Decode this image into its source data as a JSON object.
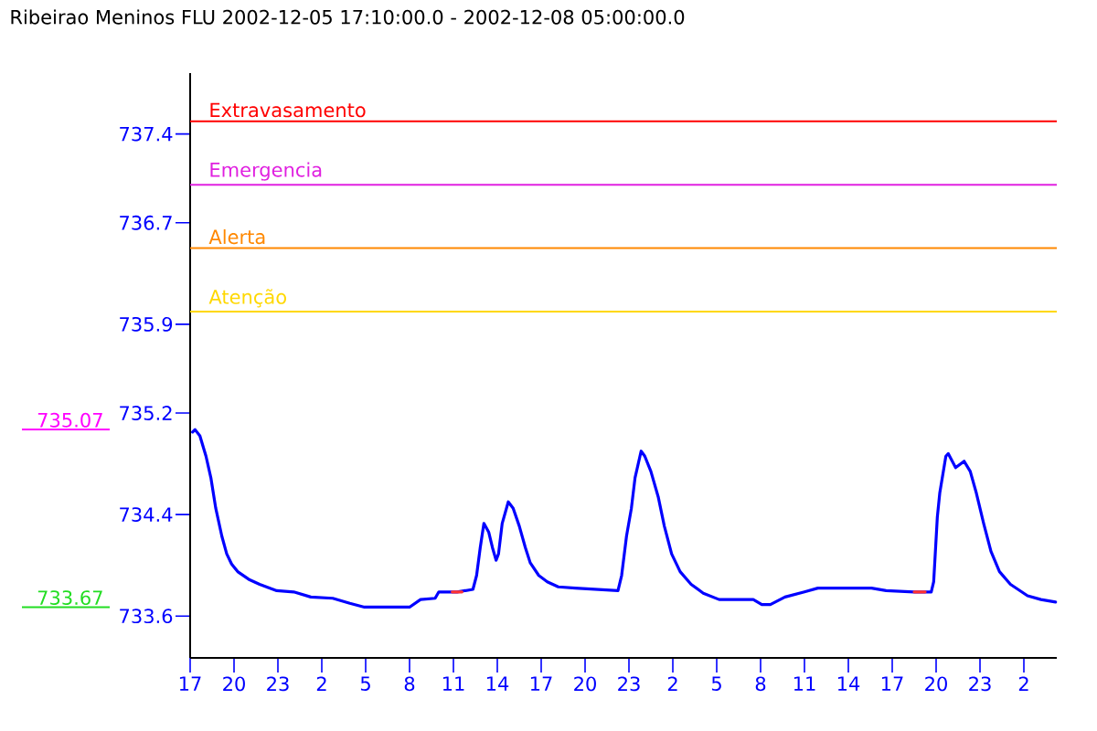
{
  "chart_data": {
    "type": "line",
    "title": "Ribeirao Meninos FLU 2002-12-05 17:10:00.0 - 2002-12-08 05:00:00.0",
    "x": [
      "2002-12-05T17:10",
      "2002-12-05T17:20",
      "2002-12-05T17:40",
      "2002-12-05T18:05",
      "2002-12-05T18:25",
      "2002-12-05T18:45",
      "2002-12-05T19:10",
      "2002-12-05T19:30",
      "2002-12-05T19:50",
      "2002-12-05T20:15",
      "2002-12-05T21:00",
      "2002-12-05T21:45",
      "2002-12-05T22:55",
      "2002-12-06T00:05",
      "2002-12-06T01:15",
      "2002-12-06T02:45",
      "2002-12-06T03:55",
      "2002-12-06T04:55",
      "2002-12-06T08:00",
      "2002-12-06T08:45",
      "2002-12-06T09:45",
      "2002-12-06T10:00",
      "2002-12-06T11:15",
      "2002-12-06T12:20",
      "2002-12-06T12:35",
      "2002-12-06T12:50",
      "2002-12-06T13:05",
      "2002-12-06T13:25",
      "2002-12-06T13:40",
      "2002-12-06T13:55",
      "2002-12-06T14:05",
      "2002-12-06T14:20",
      "2002-12-06T14:45",
      "2002-12-06T15:05",
      "2002-12-06T15:30",
      "2002-12-06T15:55",
      "2002-12-06T16:15",
      "2002-12-06T16:50",
      "2002-12-06T17:25",
      "2002-12-06T18:10",
      "2002-12-06T19:20",
      "2002-12-06T20:55",
      "2002-12-06T22:15",
      "2002-12-06T22:30",
      "2002-12-06T22:50",
      "2002-12-06T23:10",
      "2002-12-06T23:25",
      "2002-12-06T23:50",
      "2002-12-07T00:05",
      "2002-12-07T00:30",
      "2002-12-07T01:00",
      "2002-12-07T01:25",
      "2002-12-07T01:55",
      "2002-12-07T02:30",
      "2002-12-07T03:15",
      "2002-12-07T04:05",
      "2002-12-07T05:10",
      "2002-12-07T07:30",
      "2002-12-07T08:05",
      "2002-12-07T08:40",
      "2002-12-07T09:40",
      "2002-12-07T11:00",
      "2002-12-07T11:55",
      "2002-12-07T15:35",
      "2002-12-07T16:35",
      "2002-12-07T18:30",
      "2002-12-07T19:40",
      "2002-12-07T19:50",
      "2002-12-07T20:05",
      "2002-12-07T20:15",
      "2002-12-07T20:40",
      "2002-12-07T20:50",
      "2002-12-07T21:20",
      "2002-12-07T21:55",
      "2002-12-07T22:20",
      "2002-12-07T22:45",
      "2002-12-07T23:15",
      "2002-12-07T23:45",
      "2002-12-08T00:20",
      "2002-12-08T01:05",
      "2002-12-08T02:15",
      "2002-12-08T03:10",
      "2002-12-08T04:10"
    ],
    "series": [
      {
        "color": "#0000ff",
        "values": [
          735.05,
          735.07,
          735.02,
          734.86,
          734.69,
          734.45,
          734.23,
          734.09,
          734.01,
          733.95,
          733.89,
          733.85,
          733.8,
          733.79,
          733.75,
          733.74,
          733.7,
          733.67,
          733.67,
          733.73,
          733.74,
          733.79,
          733.79,
          733.81,
          733.92,
          734.14,
          734.33,
          734.26,
          734.14,
          734.04,
          734.09,
          734.33,
          734.5,
          734.45,
          734.31,
          734.14,
          734.02,
          733.92,
          733.87,
          733.83,
          733.82,
          733.81,
          733.8,
          733.92,
          734.23,
          734.45,
          734.69,
          734.9,
          734.86,
          734.74,
          734.54,
          734.31,
          734.09,
          733.95,
          733.85,
          733.78,
          733.73,
          733.73,
          733.69,
          733.69,
          733.75,
          733.79,
          733.82,
          733.82,
          733.8,
          733.79,
          733.79,
          733.87,
          734.38,
          734.57,
          734.86,
          734.88,
          734.77,
          734.82,
          734.74,
          734.57,
          734.33,
          734.11,
          733.95,
          733.85,
          733.76,
          733.73,
          733.71
        ]
      },
      {
        "color": "#ff3333",
        "x": [
          "2002-12-06T10:55",
          "2002-12-06T11:35",
          "2002-12-07T12:00",
          "2002-12-07T18:30",
          "2002-12-07T19:15"
        ],
        "values": [
          733.79,
          733.79,
          null,
          733.79,
          733.79
        ]
      }
    ],
    "xlim": [
      "2002-12-05T17:00",
      "2002-12-08T04:15"
    ],
    "xticks": [
      {
        "value": "2002-12-05T17:00",
        "label": "17"
      },
      {
        "value": "2002-12-05T20:00",
        "label": "20"
      },
      {
        "value": "2002-12-05T23:00",
        "label": "23"
      },
      {
        "value": "2002-12-06T02:00",
        "label": "2"
      },
      {
        "value": "2002-12-06T05:00",
        "label": "5"
      },
      {
        "value": "2002-12-06T08:00",
        "label": "8"
      },
      {
        "value": "2002-12-06T11:00",
        "label": "11"
      },
      {
        "value": "2002-12-06T14:00",
        "label": "14"
      },
      {
        "value": "2002-12-06T17:00",
        "label": "17"
      },
      {
        "value": "2002-12-06T20:00",
        "label": "20"
      },
      {
        "value": "2002-12-06T23:00",
        "label": "23"
      },
      {
        "value": "2002-12-07T02:00",
        "label": "2"
      },
      {
        "value": "2002-12-07T05:00",
        "label": "5"
      },
      {
        "value": "2002-12-07T08:00",
        "label": "8"
      },
      {
        "value": "2002-12-07T11:00",
        "label": "11"
      },
      {
        "value": "2002-12-07T14:00",
        "label": "14"
      },
      {
        "value": "2002-12-07T17:00",
        "label": "17"
      },
      {
        "value": "2002-12-07T20:00",
        "label": "20"
      },
      {
        "value": "2002-12-07T23:00",
        "label": "23"
      },
      {
        "value": "2002-12-08T02:00",
        "label": "2"
      }
    ],
    "ylim": [
      733.27,
      737.88
    ],
    "yticks": [
      733.6,
      734.4,
      735.2,
      735.9,
      736.7,
      737.4
    ],
    "ref_lines": [
      {
        "axis": "y",
        "value": 737.5,
        "label": "Extravasamento",
        "color": "#ff0000"
      },
      {
        "axis": "y",
        "value": 737.0,
        "label": "Emergencia",
        "color": "#e020e0"
      },
      {
        "axis": "y",
        "value": 736.5,
        "label": "Alerta",
        "color": "#ff8800"
      },
      {
        "axis": "y",
        "value": 736.0,
        "label": "Atenção",
        "color": "#ffd800"
      },
      {
        "axis": "y",
        "value": 735.07,
        "label": "735.07",
        "color": "#ff00ff"
      },
      {
        "axis": "y",
        "value": 733.67,
        "label": "733.67",
        "color": "#22dd22"
      }
    ],
    "line_style": "solid"
  }
}
